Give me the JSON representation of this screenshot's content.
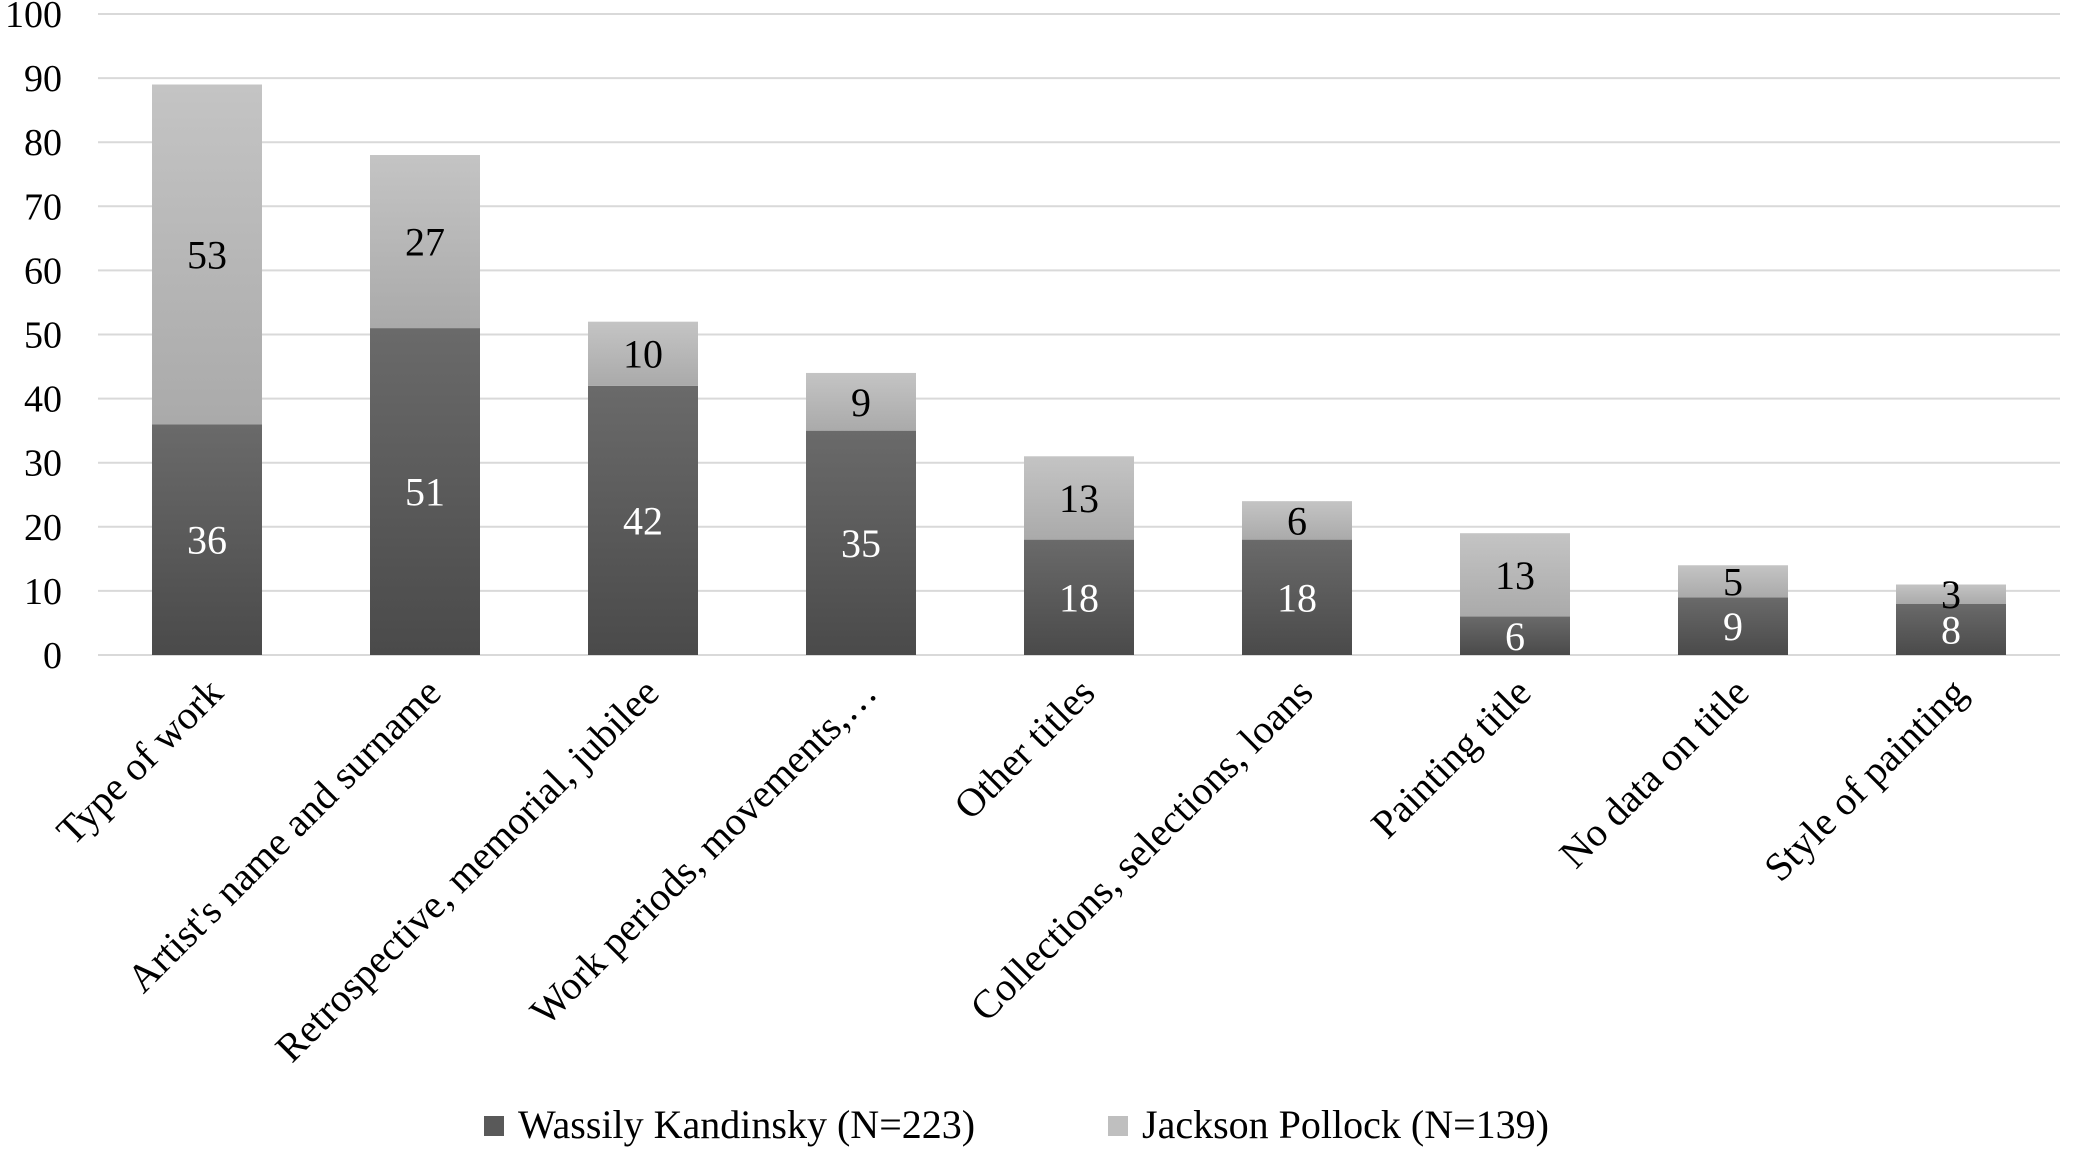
{
  "chart_data": {
    "type": "bar",
    "stacked": true,
    "categories": [
      "Type of work",
      "Artist's name and surname",
      "Retrospective, memorial, jubilee",
      "Work periods, movements,…",
      "Other titles",
      "Collections, selections, loans",
      "Painting title",
      "No data on title",
      "Style of painting"
    ],
    "series": [
      {
        "name": "Wassily Kandinsky (N=223)",
        "color": "#595959",
        "label_color": "#ffffff",
        "values": [
          36,
          51,
          42,
          35,
          18,
          18,
          6,
          9,
          8
        ]
      },
      {
        "name": "Jackson Pollock (N=139)",
        "color": "#bfbfbf",
        "label_color": "#000000",
        "values": [
          53,
          27,
          10,
          9,
          13,
          6,
          13,
          5,
          3
        ]
      }
    ],
    "ylim": [
      0,
      100
    ],
    "yticks": [
      0,
      10,
      20,
      30,
      40,
      50,
      60,
      70,
      80,
      90,
      100
    ],
    "title": "",
    "xlabel": "",
    "ylabel": "",
    "grid": true,
    "legend_position": "bottom"
  }
}
